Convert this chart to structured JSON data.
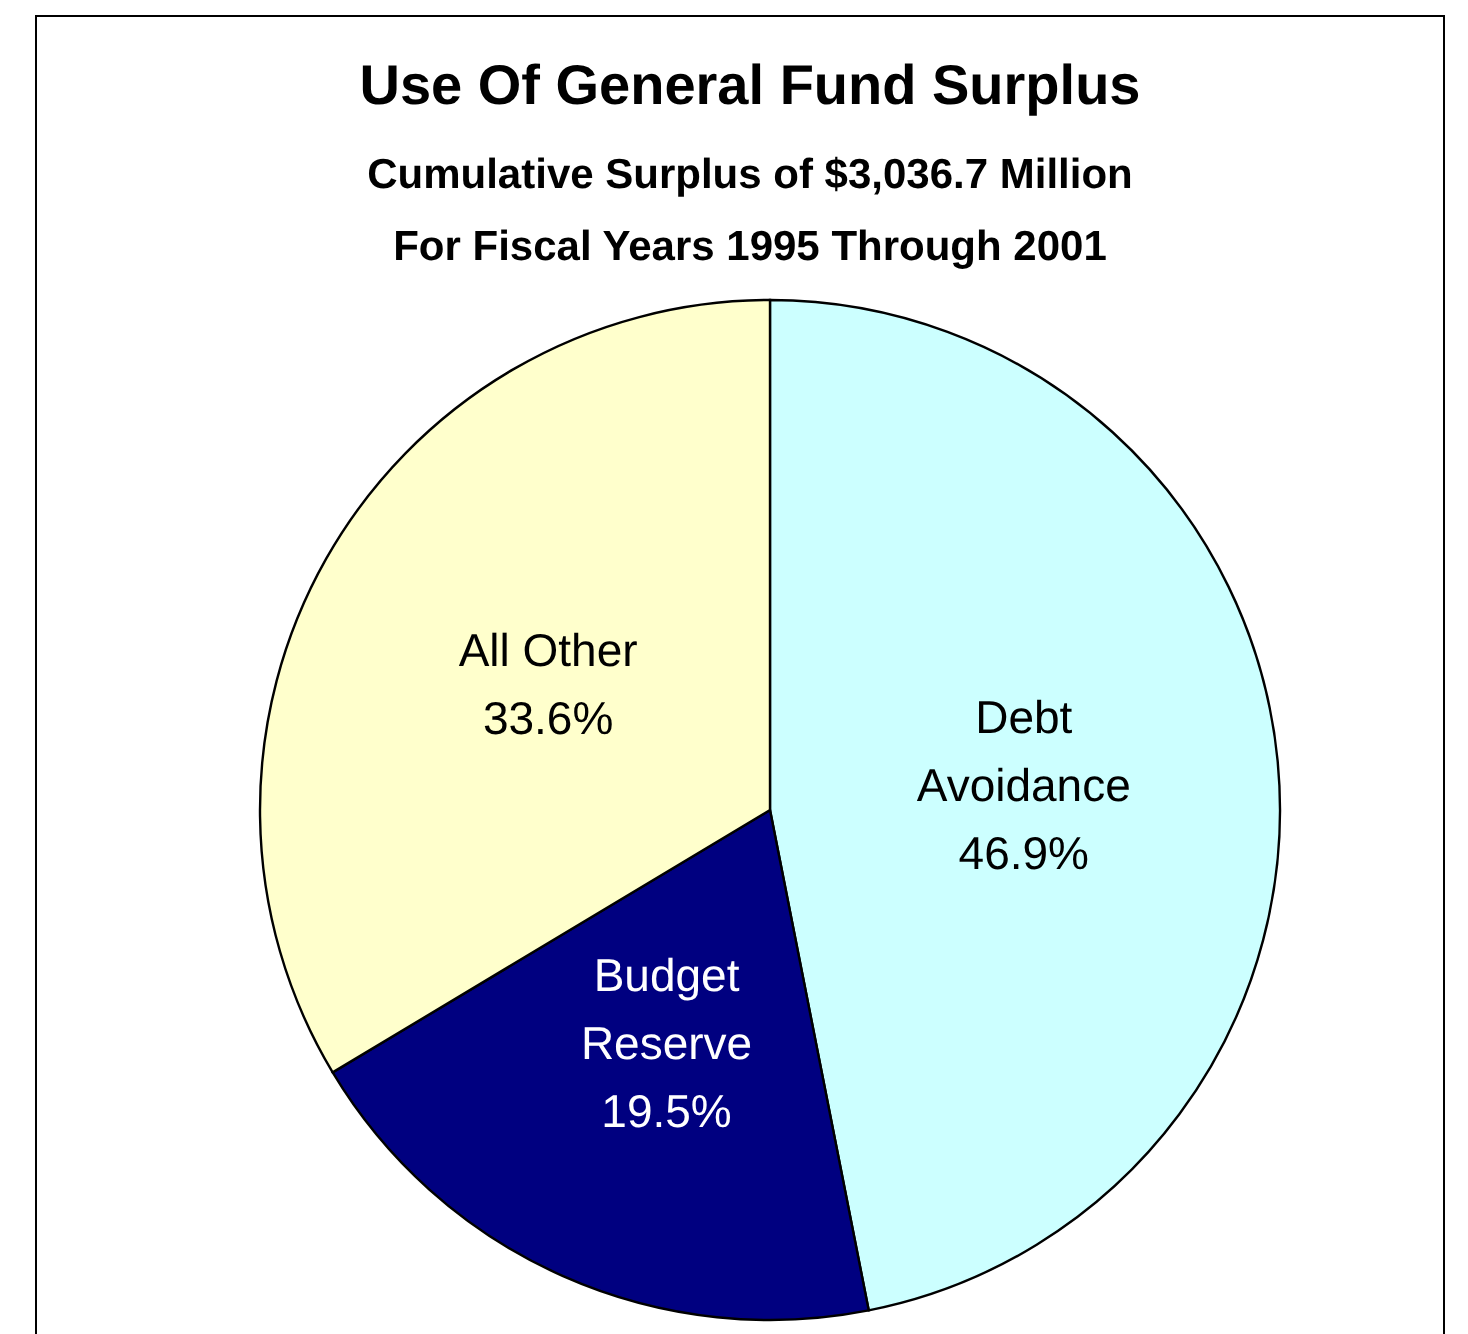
{
  "chart_data": {
    "type": "pie",
    "title": "Use Of General Fund Surplus",
    "subtitle": "Cumulative Surplus of $3,036.7 Million\nFor Fiscal Years 1995 Through 2001",
    "categories": [
      "Debt Avoidance",
      "Budget Reserve",
      "All Other"
    ],
    "values": [
      46.9,
      19.5,
      33.6
    ],
    "colors": [
      "#ccffff",
      "#000080",
      "#ffffcc"
    ],
    "value_labels": [
      "46.9%",
      "19.5%",
      "33.6%"
    ]
  }
}
